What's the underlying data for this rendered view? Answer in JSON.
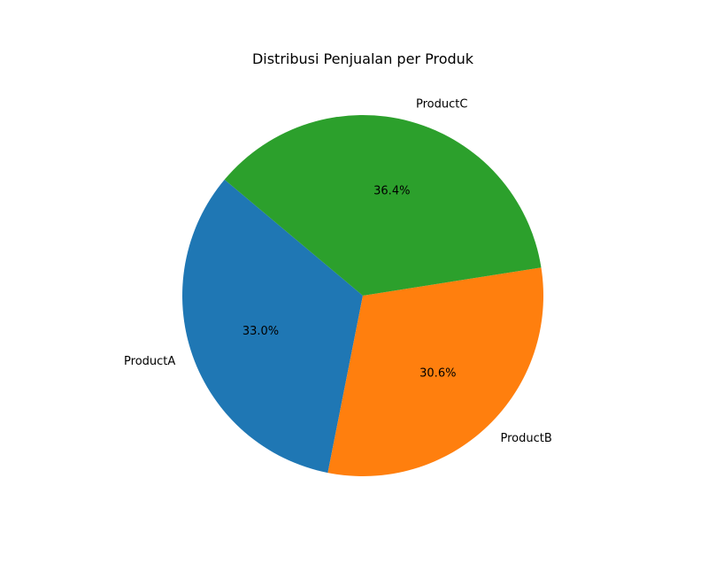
{
  "chart_data": {
    "type": "pie",
    "title": "Distribusi Penjualan per Produk",
    "categories": [
      "ProductA",
      "ProductB",
      "ProductC"
    ],
    "values": [
      33.0,
      30.6,
      36.4
    ],
    "percent_labels": [
      "33.0%",
      "30.6%",
      "36.4%"
    ],
    "colors": [
      "#1f77b4",
      "#ff7f0e",
      "#2ca02c"
    ],
    "start_angle_deg": 140,
    "direction": "counterclockwise",
    "legend": "none"
  }
}
